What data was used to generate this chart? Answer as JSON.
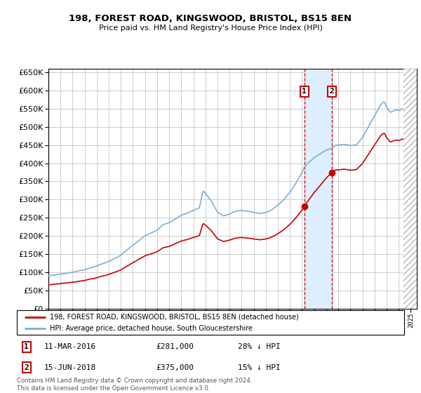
{
  "title": "198, FOREST ROAD, KINGSWOOD, BRISTOL, BS15 8EN",
  "subtitle": "Price paid vs. HM Land Registry's House Price Index (HPI)",
  "legend_entry1": "198, FOREST ROAD, KINGSWOOD, BRISTOL, BS15 8EN (detached house)",
  "legend_entry2": "HPI: Average price, detached house, South Gloucestershire",
  "footnote": "Contains HM Land Registry data © Crown copyright and database right 2024.\nThis data is licensed under the Open Government Licence v3.0.",
  "sale1_date": "11-MAR-2016",
  "sale1_price": 281000,
  "sale1_label": "28% ↓ HPI",
  "sale2_date": "15-JUN-2018",
  "sale2_price": 375000,
  "sale2_label": "15% ↓ HPI",
  "sale1_x": 2016.19,
  "sale2_x": 2018.46,
  "ylim": [
    0,
    660000
  ],
  "xlim_start": 1995.0,
  "xlim_end": 2025.5,
  "hpi_color": "#7bafd4",
  "price_color": "#cc0000",
  "bg_color": "#ffffff",
  "grid_color": "#cccccc",
  "shade_color": "#ddeeff",
  "hatch_start": 2024.42
}
